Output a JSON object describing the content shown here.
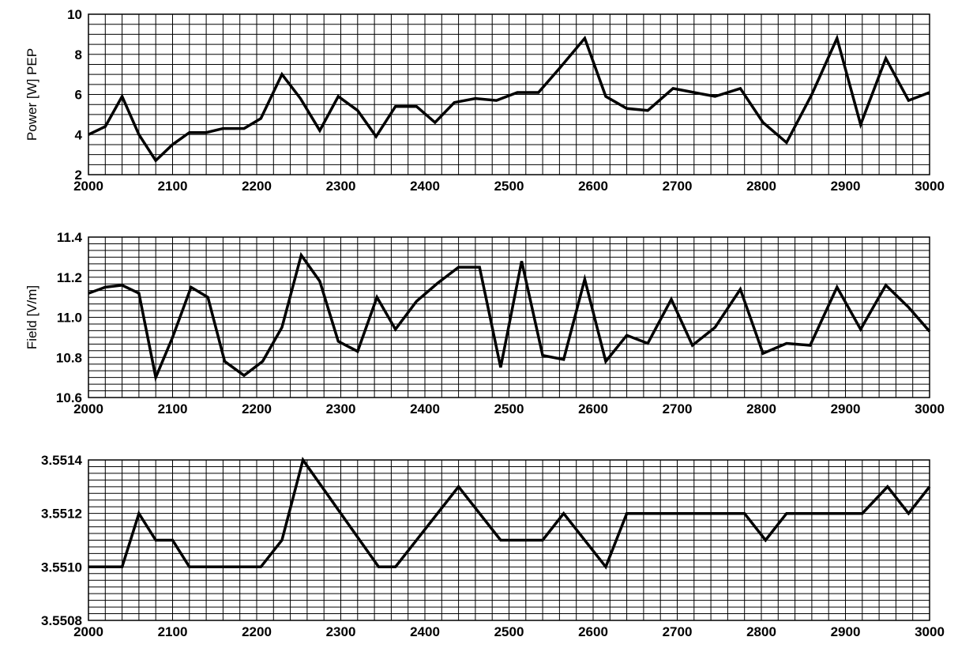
{
  "chart_data": [
    {
      "type": "line",
      "title": "",
      "xlabel": "",
      "ylabel": "Power [W] PEP",
      "xlim": [
        2000,
        3000
      ],
      "ylim": [
        2,
        10
      ],
      "grid": true,
      "x_ticks": [
        "2000",
        "2100",
        "2200",
        "2300",
        "2400",
        "2500",
        "2600",
        "2700",
        "2800",
        "2900",
        "3000"
      ],
      "y_ticks": [
        "2",
        "4",
        "6",
        "8",
        "10"
      ],
      "series": [
        {
          "x": [
            2000,
            2020,
            2040,
            2060,
            2080,
            2100,
            2120,
            2140,
            2160,
            2185,
            2205,
            2230,
            2252,
            2275,
            2297,
            2320,
            2342,
            2365,
            2390,
            2412,
            2435,
            2460,
            2485,
            2510,
            2535,
            2560,
            2590,
            2615,
            2640,
            2665,
            2695,
            2720,
            2745,
            2775,
            2802,
            2830,
            2860,
            2890,
            2918,
            2948,
            2975,
            3000
          ],
          "values": [
            4.0,
            4.4,
            5.9,
            4.0,
            2.7,
            3.5,
            4.1,
            4.1,
            4.3,
            4.3,
            4.8,
            7.0,
            5.8,
            4.2,
            5.9,
            5.2,
            3.9,
            5.4,
            5.4,
            4.6,
            5.6,
            5.8,
            5.7,
            6.1,
            6.1,
            7.3,
            8.8,
            5.9,
            5.3,
            5.2,
            6.3,
            6.1,
            5.9,
            6.3,
            4.6,
            3.6,
            6.0,
            8.8,
            4.5,
            7.8,
            5.7,
            6.1
          ]
        }
      ]
    },
    {
      "type": "line",
      "title": "",
      "xlabel": "",
      "ylabel": "Field [V/m]",
      "xlim": [
        2000,
        3000
      ],
      "ylim": [
        10.6,
        11.4
      ],
      "grid": true,
      "x_ticks": [
        "2000",
        "2100",
        "2200",
        "2300",
        "2400",
        "2500",
        "2600",
        "2700",
        "2800",
        "2900",
        "3000"
      ],
      "y_ticks": [
        "10.6",
        "10.8",
        "11.0",
        "11.2",
        "11.4"
      ],
      "series": [
        {
          "x": [
            2000,
            2020,
            2040,
            2060,
            2080,
            2100,
            2122,
            2142,
            2162,
            2185,
            2207,
            2230,
            2253,
            2275,
            2297,
            2320,
            2343,
            2365,
            2390,
            2415,
            2440,
            2465,
            2490,
            2515,
            2540,
            2565,
            2590,
            2615,
            2640,
            2665,
            2693,
            2718,
            2745,
            2775,
            2802,
            2830,
            2858,
            2890,
            2918,
            2948,
            2975,
            3000
          ],
          "values": [
            11.12,
            11.15,
            11.16,
            11.12,
            10.7,
            10.9,
            11.15,
            11.1,
            10.78,
            10.71,
            10.78,
            10.95,
            11.31,
            11.18,
            10.88,
            10.83,
            11.1,
            10.94,
            11.08,
            11.17,
            11.25,
            11.25,
            10.75,
            11.28,
            10.81,
            10.79,
            11.19,
            10.78,
            10.91,
            10.87,
            11.09,
            10.86,
            10.95,
            11.14,
            10.82,
            10.87,
            10.86,
            11.15,
            10.94,
            11.16,
            11.05,
            10.93
          ]
        }
      ]
    },
    {
      "type": "line",
      "title": "",
      "xlabel": "",
      "ylabel": "",
      "xlim": [
        2000,
        3000
      ],
      "ylim": [
        3.5508,
        3.5514
      ],
      "grid": true,
      "x_ticks": [
        "2000",
        "2100",
        "2200",
        "2300",
        "2400",
        "2500",
        "2600",
        "2700",
        "2800",
        "2900",
        "3000"
      ],
      "y_ticks": [
        "3.5508",
        "3.5510",
        "3.5512",
        "3.5514"
      ],
      "series": [
        {
          "x": [
            2000,
            2040,
            2060,
            2080,
            2100,
            2120,
            2140,
            2160,
            2185,
            2205,
            2230,
            2255,
            2345,
            2365,
            2440,
            2490,
            2540,
            2565,
            2615,
            2640,
            2780,
            2805,
            2830,
            2920,
            2950,
            2975,
            3000
          ],
          "values": [
            3.551,
            3.551,
            3.5512,
            3.5511,
            3.5511,
            3.551,
            3.551,
            3.551,
            3.551,
            3.551,
            3.5511,
            3.5514,
            3.551,
            3.551,
            3.5513,
            3.5511,
            3.5511,
            3.5512,
            3.551,
            3.5512,
            3.5512,
            3.5511,
            3.5512,
            3.5512,
            3.5513,
            3.5512,
            3.5513
          ]
        }
      ]
    }
  ]
}
